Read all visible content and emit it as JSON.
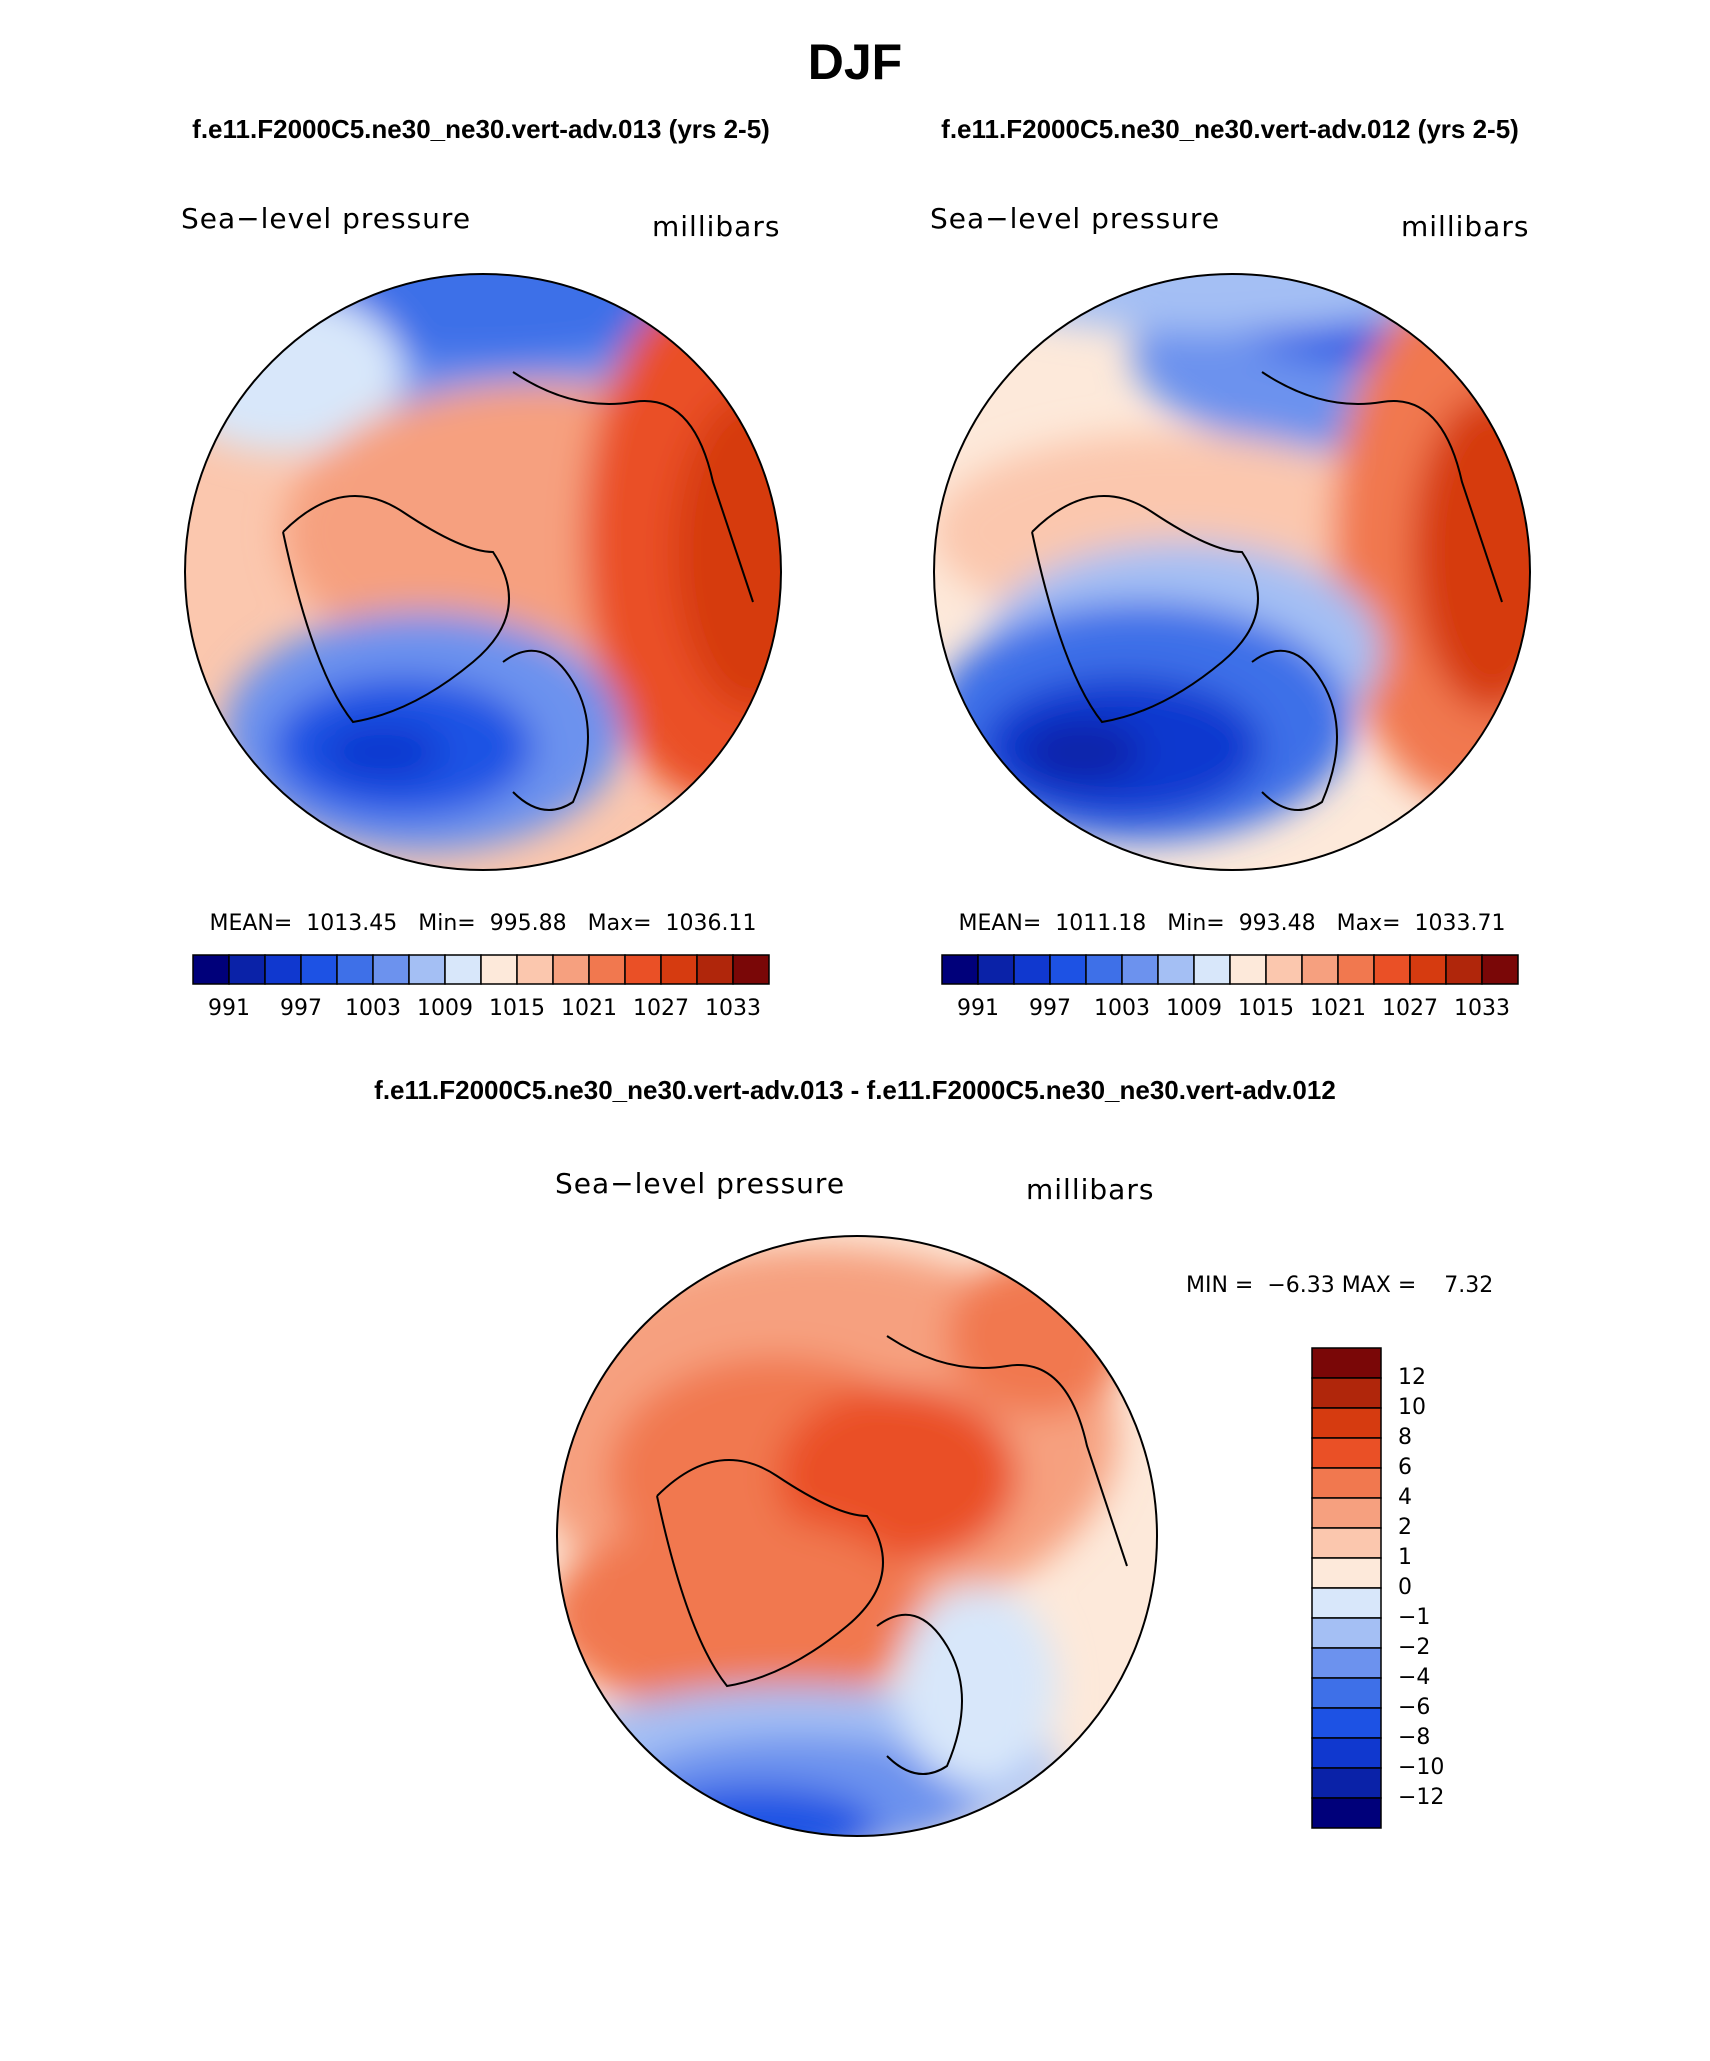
{
  "title": "DJF",
  "subtitles": [
    "f.e11.F2000C5.ne30_ne30.vert-adv.013 (yrs 2-5)",
    "f.e11.F2000C5.ne30_ne30.vert-adv.012 (yrs 2-5)"
  ],
  "panels": [
    {
      "left_label": "Sea−level pressure",
      "right_label": "millibars",
      "stats": "MEAN=  1013.45   Min=  995.88   Max=  1036.11",
      "colorbar_labels": [
        "991",
        "997",
        "1003",
        "1009",
        "1015",
        "1021",
        "1027",
        "1033"
      ]
    },
    {
      "left_label": "Sea−level pressure",
      "right_label": "millibars",
      "stats": "MEAN=  1011.18   Min=  993.48   Max=  1033.71",
      "colorbar_labels": [
        "991",
        "997",
        "1003",
        "1009",
        "1015",
        "1021",
        "1027",
        "1033"
      ]
    }
  ],
  "difference": {
    "title": "f.e11.F2000C5.ne30_ne30.vert-adv.013 - f.e11.F2000C5.ne30_ne30.vert-adv.012",
    "left_label": "Sea−level pressure",
    "right_label": "millibars",
    "stats": "MIN =  −6.33 MAX =    7.32",
    "colorbar_labels": [
      "12",
      "10",
      "8",
      "6",
      "4",
      "2",
      "1",
      "0",
      "−1",
      "−2",
      "−4",
      "−6",
      "−8",
      "−10",
      "−12"
    ]
  },
  "colors": [
    "#00007a",
    "#0a22a8",
    "#1038cf",
    "#1d52e4",
    "#3e70e8",
    "#6c92ee",
    "#a4bff4",
    "#d8e7fa",
    "#fde9da",
    "#fbc7ae",
    "#f6a07f",
    "#f1784f",
    "#ea5026",
    "#d63b10",
    "#b0260b",
    "#7a0707"
  ]
}
